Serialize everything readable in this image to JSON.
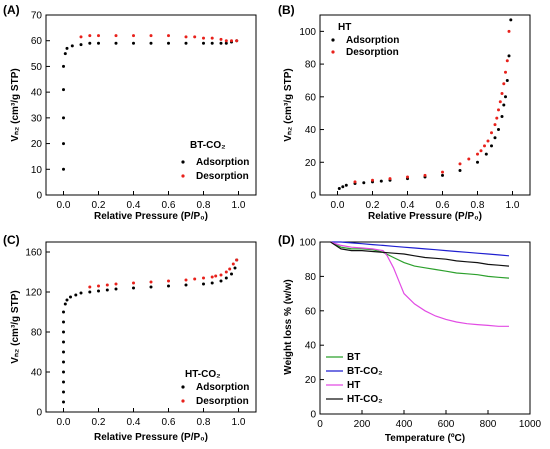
{
  "chart_data": [
    {
      "panel": "(A)",
      "type": "scatter",
      "xlabel": "Relative Pressure (P/P₀)",
      "ylabel": "Vₙ₂ (cm³/g STP)",
      "xlim": [
        -0.1,
        1.1
      ],
      "ylim": [
        0,
        70
      ],
      "xticks": [
        0.0,
        0.2,
        0.4,
        0.6,
        0.8,
        1.0
      ],
      "yticks": [
        0,
        10,
        20,
        30,
        40,
        50,
        60,
        70
      ],
      "legend_title": "BT-CO₂",
      "legend_placement": "bottom-right",
      "series": [
        {
          "name": "Adsorption",
          "color": "#000000",
          "x": [
            0.0,
            0.0,
            0.0,
            0.0,
            0.0,
            0.01,
            0.02,
            0.05,
            0.1,
            0.15,
            0.2,
            0.3,
            0.4,
            0.5,
            0.6,
            0.7,
            0.8,
            0.85,
            0.9,
            0.93,
            0.96,
            0.99
          ],
          "y": [
            10,
            20,
            30,
            41,
            50,
            55,
            57,
            58,
            58.5,
            59,
            59,
            59,
            59,
            59,
            59,
            59,
            59,
            59,
            59,
            59,
            59.5,
            60
          ]
        },
        {
          "name": "Desorption",
          "color": "#e8211b",
          "x": [
            0.99,
            0.96,
            0.93,
            0.9,
            0.85,
            0.8,
            0.75,
            0.7,
            0.6,
            0.5,
            0.4,
            0.3,
            0.2,
            0.15,
            0.1
          ],
          "y": [
            60,
            60,
            60,
            60.5,
            61,
            61,
            61.5,
            61.5,
            62,
            62,
            62,
            62,
            62,
            62,
            61.5
          ]
        }
      ]
    },
    {
      "panel": "(B)",
      "type": "scatter",
      "xlabel": "Relative Pressure (P/P₀)",
      "ylabel": "Vₙ₂ (cm³/g STP)",
      "xlim": [
        -0.1,
        1.1
      ],
      "ylim": [
        0,
        110
      ],
      "xticks": [
        0.0,
        0.2,
        0.4,
        0.6,
        0.8,
        1.0
      ],
      "yticks": [
        0,
        20,
        40,
        60,
        80,
        100
      ],
      "legend_title": "HT",
      "legend_placement": "top-left",
      "series": [
        {
          "name": "Adsorption",
          "color": "#000000",
          "x": [
            0.01,
            0.03,
            0.05,
            0.1,
            0.15,
            0.2,
            0.25,
            0.3,
            0.4,
            0.5,
            0.6,
            0.7,
            0.8,
            0.85,
            0.88,
            0.9,
            0.92,
            0.94,
            0.95,
            0.96,
            0.97,
            0.98,
            0.99
          ],
          "y": [
            4,
            5,
            6,
            7,
            7.5,
            8,
            8.5,
            9,
            10,
            11,
            12,
            15,
            20,
            25,
            30,
            35,
            40,
            48,
            55,
            60,
            70,
            85,
            107
          ]
        },
        {
          "name": "Desorption",
          "color": "#e8211b",
          "x": [
            0.98,
            0.97,
            0.96,
            0.95,
            0.94,
            0.93,
            0.92,
            0.91,
            0.9,
            0.88,
            0.86,
            0.84,
            0.82,
            0.8,
            0.75,
            0.7,
            0.6,
            0.5,
            0.4,
            0.3,
            0.2,
            0.1
          ],
          "y": [
            100,
            82,
            75,
            68,
            62,
            57,
            52,
            47,
            43,
            38,
            33,
            30,
            27,
            25,
            22,
            19,
            14,
            12,
            11,
            10,
            9,
            8
          ]
        }
      ]
    },
    {
      "panel": "(C)",
      "type": "scatter",
      "xlabel": "Relative Pressure (P/P₀)",
      "ylabel": "Vₙ₂ (cm³/g STP)",
      "xlim": [
        -0.1,
        1.1
      ],
      "ylim": [
        0,
        170
      ],
      "xticks": [
        0.0,
        0.2,
        0.4,
        0.6,
        0.8,
        1.0
      ],
      "yticks": [
        0,
        40,
        80,
        120,
        160
      ],
      "legend_title": "HT-CO₂",
      "legend_placement": "bottom-right",
      "series": [
        {
          "name": "Adsorption",
          "color": "#000000",
          "x": [
            0.0,
            0.0,
            0.0,
            0.0,
            0.0,
            0.0,
            0.0,
            0.0,
            0.0,
            0.0,
            0.01,
            0.02,
            0.04,
            0.07,
            0.1,
            0.15,
            0.2,
            0.25,
            0.3,
            0.4,
            0.5,
            0.6,
            0.7,
            0.8,
            0.85,
            0.9,
            0.93,
            0.96,
            0.98,
            0.99
          ],
          "y": [
            10,
            20,
            30,
            40,
            50,
            60,
            70,
            80,
            90,
            100,
            108,
            112,
            115,
            117,
            119,
            120,
            121,
            122,
            123,
            124,
            125,
            126,
            127,
            128,
            129,
            131,
            134,
            138,
            144,
            152
          ]
        },
        {
          "name": "Desorption",
          "color": "#e8211b",
          "x": [
            0.99,
            0.97,
            0.95,
            0.93,
            0.9,
            0.87,
            0.85,
            0.8,
            0.75,
            0.7,
            0.6,
            0.5,
            0.4,
            0.3,
            0.25,
            0.2,
            0.15
          ],
          "y": [
            152,
            148,
            143,
            140,
            137,
            136,
            135,
            134,
            133,
            132,
            131,
            130,
            129,
            128,
            127,
            126,
            125
          ]
        }
      ]
    },
    {
      "panel": "(D)",
      "type": "line",
      "xlabel": "Temperature (ºC)",
      "ylabel": "Weight loss % (w/w)",
      "xlim": [
        0,
        1000
      ],
      "ylim": [
        0,
        100
      ],
      "xticks": [
        0,
        200,
        400,
        600,
        800,
        1000
      ],
      "yticks": [
        0,
        20,
        40,
        60,
        80,
        100
      ],
      "legend_placement": "bottom-left",
      "series": [
        {
          "name": "BT",
          "color": "#2ca02c",
          "x": [
            50,
            100,
            150,
            200,
            250,
            300,
            350,
            400,
            450,
            500,
            550,
            600,
            650,
            700,
            750,
            800,
            850,
            900
          ],
          "y": [
            100,
            97,
            96,
            96,
            95.5,
            94,
            91,
            88,
            86,
            85,
            84,
            83,
            82,
            81.5,
            81,
            80,
            79.5,
            79
          ]
        },
        {
          "name": "BT-CO₂",
          "color": "#1f1fd0",
          "x": [
            50,
            100,
            150,
            200,
            250,
            300,
            350,
            400,
            450,
            500,
            550,
            600,
            650,
            700,
            750,
            800,
            850,
            900
          ],
          "y": [
            100,
            100,
            99.5,
            99,
            98.5,
            98,
            97.5,
            97,
            96.5,
            96,
            95.5,
            95,
            94.5,
            94,
            93.5,
            93,
            92.5,
            92
          ]
        },
        {
          "name": "HT",
          "color": "#e24ce4",
          "x": [
            50,
            100,
            150,
            200,
            250,
            300,
            320,
            350,
            380,
            400,
            450,
            500,
            550,
            600,
            650,
            700,
            750,
            800,
            850,
            900
          ],
          "y": [
            100,
            98,
            97,
            96.5,
            96,
            95,
            92,
            85,
            76,
            70,
            64,
            60,
            57,
            55,
            53.5,
            52.5,
            52,
            51.5,
            51,
            51
          ]
        },
        {
          "name": "HT-CO₂",
          "color": "#111111",
          "x": [
            50,
            100,
            150,
            200,
            250,
            300,
            350,
            400,
            450,
            500,
            550,
            600,
            650,
            700,
            750,
            800,
            850,
            900
          ],
          "y": [
            100,
            96,
            95,
            95,
            94.5,
            94,
            93.5,
            93,
            92,
            91,
            90.5,
            90,
            89,
            88.5,
            88,
            87,
            86.5,
            86
          ]
        }
      ]
    }
  ]
}
